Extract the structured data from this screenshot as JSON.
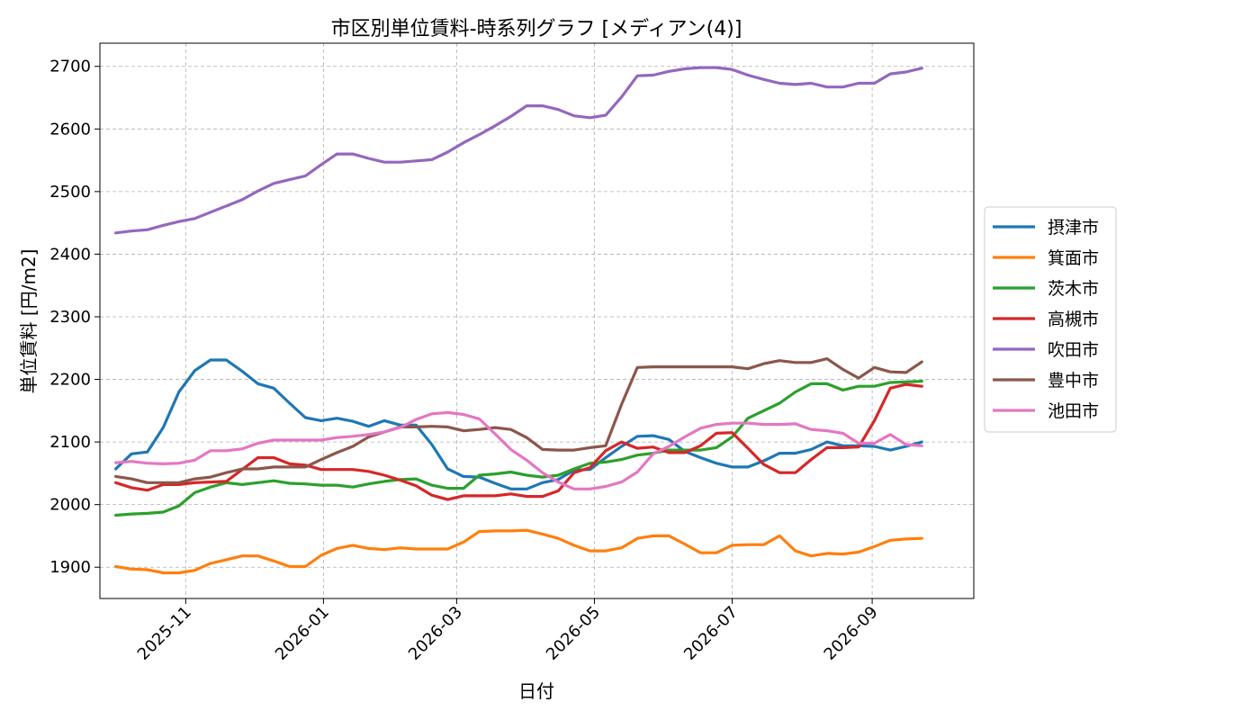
{
  "chart_data": {
    "type": "line",
    "title": "市区別単位賃料-時系列グラフ [メディアン(4)]",
    "xlabel": "日付",
    "ylabel": "単位賃料 [円/m2]",
    "ylim": [
      1850,
      2737
    ],
    "xlim": [
      "2025-09-24",
      "2026-10-16"
    ],
    "grid": true,
    "legend_position": "right-outside",
    "x_ticks": [
      "2025-11",
      "2026-01",
      "2026-03",
      "2026-05",
      "2026-07",
      "2026-09"
    ],
    "y_ticks": [
      1900,
      2000,
      2100,
      2200,
      2300,
      2400,
      2500,
      2600,
      2700
    ],
    "x": [
      "2025-10-01",
      "2025-10-08",
      "2025-10-15",
      "2025-10-22",
      "2025-10-29",
      "2025-11-05",
      "2025-11-12",
      "2025-11-19",
      "2025-11-26",
      "2025-12-03",
      "2025-12-10",
      "2025-12-17",
      "2025-12-24",
      "2025-12-31",
      "2026-01-07",
      "2026-01-14",
      "2026-01-21",
      "2026-01-28",
      "2026-02-04",
      "2026-02-11",
      "2026-02-18",
      "2026-02-25",
      "2026-03-04",
      "2026-03-11",
      "2026-03-18",
      "2026-03-25",
      "2026-04-01",
      "2026-04-08",
      "2026-04-15",
      "2026-04-22",
      "2026-04-29",
      "2026-05-06",
      "2026-05-13",
      "2026-05-20",
      "2026-05-27",
      "2026-06-03",
      "2026-06-10",
      "2026-06-17",
      "2026-06-24",
      "2026-07-01",
      "2026-07-08",
      "2026-07-15",
      "2026-07-22",
      "2026-07-29",
      "2026-08-05",
      "2026-08-12",
      "2026-08-19",
      "2026-08-26",
      "2026-09-02",
      "2026-09-09",
      "2026-09-16",
      "2026-09-23"
    ],
    "series": [
      {
        "name": "摂津市",
        "color": "#1f77b4",
        "values": [
          2057,
          2081,
          2084,
          2123,
          2180,
          2214,
          2231,
          2231,
          2213,
          2193,
          2186,
          2162,
          2139,
          2134,
          2138,
          2133,
          2125,
          2134,
          2127,
          2127,
          2096,
          2057,
          2045,
          2044,
          2034,
          2025,
          2025,
          2035,
          2040,
          2055,
          2056,
          2075,
          2093,
          2109,
          2110,
          2104,
          2085,
          2075,
          2066,
          2060,
          2060,
          2070,
          2082,
          2082,
          2088,
          2100,
          2094,
          2094,
          2093,
          2087,
          2093,
          2100
        ]
      },
      {
        "name": "箕面市",
        "color": "#ff7f0e",
        "values": [
          1901,
          1897,
          1896,
          1891,
          1891,
          1895,
          1906,
          1912,
          1918,
          1918,
          1910,
          1901,
          1901,
          1919,
          1930,
          1935,
          1930,
          1928,
          1931,
          1929,
          1929,
          1929,
          1940,
          1957,
          1958,
          1958,
          1959,
          1953,
          1946,
          1935,
          1926,
          1926,
          1931,
          1946,
          1950,
          1950,
          1937,
          1923,
          1923,
          1935,
          1936,
          1936,
          1950,
          1926,
          1918,
          1922,
          1921,
          1924,
          1933,
          1943,
          1945,
          1946
        ]
      },
      {
        "name": "茨木市",
        "color": "#2ca02c",
        "values": [
          1983,
          1985,
          1986,
          1988,
          1998,
          2019,
          2028,
          2035,
          2032,
          2035,
          2038,
          2034,
          2033,
          2031,
          2031,
          2028,
          2033,
          2037,
          2040,
          2041,
          2031,
          2026,
          2026,
          2047,
          2049,
          2052,
          2047,
          2044,
          2047,
          2057,
          2066,
          2068,
          2072,
          2079,
          2082,
          2087,
          2087,
          2087,
          2091,
          2108,
          2138,
          2150,
          2162,
          2180,
          2193,
          2193,
          2183,
          2189,
          2189,
          2195,
          2196,
          2197
        ]
      },
      {
        "name": "高槻市",
        "color": "#d62728",
        "values": [
          2035,
          2027,
          2023,
          2032,
          2032,
          2035,
          2036,
          2037,
          2056,
          2075,
          2075,
          2065,
          2063,
          2056,
          2056,
          2056,
          2053,
          2047,
          2039,
          2030,
          2015,
          2008,
          2014,
          2014,
          2014,
          2017,
          2013,
          2013,
          2022,
          2051,
          2059,
          2086,
          2100,
          2090,
          2092,
          2083,
          2083,
          2094,
          2114,
          2115,
          2090,
          2064,
          2051,
          2051,
          2072,
          2091,
          2091,
          2092,
          2134,
          2186,
          2192,
          2189
        ]
      },
      {
        "name": "吹田市",
        "color": "#9467bd",
        "values": [
          2434,
          2437,
          2439,
          2446,
          2452,
          2457,
          2467,
          2477,
          2487,
          2501,
          2513,
          2519,
          2525,
          2543,
          2560,
          2560,
          2553,
          2547,
          2547,
          2549,
          2551,
          2563,
          2578,
          2591,
          2605,
          2620,
          2637,
          2637,
          2631,
          2621,
          2618,
          2622,
          2651,
          2685,
          2686,
          2692,
          2696,
          2698,
          2698,
          2695,
          2686,
          2679,
          2673,
          2671,
          2673,
          2667,
          2667,
          2673,
          2673,
          2688,
          2691,
          2697
        ]
      },
      {
        "name": "豊中市",
        "color": "#8c564b",
        "values": [
          2045,
          2041,
          2035,
          2035,
          2035,
          2041,
          2044,
          2051,
          2057,
          2057,
          2060,
          2060,
          2060,
          2072,
          2083,
          2093,
          2108,
          2116,
          2124,
          2124,
          2125,
          2124,
          2118,
          2120,
          2123,
          2120,
          2107,
          2088,
          2087,
          2087,
          2091,
          2094,
          2160,
          2219,
          2220,
          2220,
          2220,
          2220,
          2220,
          2220,
          2217,
          2225,
          2230,
          2227,
          2227,
          2233,
          2216,
          2202,
          2219,
          2212,
          2211,
          2228
        ]
      },
      {
        "name": "池田市",
        "color": "#e377c2",
        "values": [
          2067,
          2069,
          2066,
          2065,
          2066,
          2071,
          2086,
          2086,
          2089,
          2098,
          2103,
          2103,
          2103,
          2103,
          2107,
          2109,
          2112,
          2116,
          2123,
          2136,
          2145,
          2147,
          2144,
          2137,
          2113,
          2088,
          2071,
          2051,
          2036,
          2025,
          2025,
          2029,
          2036,
          2052,
          2081,
          2093,
          2108,
          2122,
          2128,
          2130,
          2130,
          2128,
          2128,
          2129,
          2120,
          2118,
          2114,
          2098,
          2098,
          2112,
          2096,
          2094
        ]
      }
    ]
  }
}
